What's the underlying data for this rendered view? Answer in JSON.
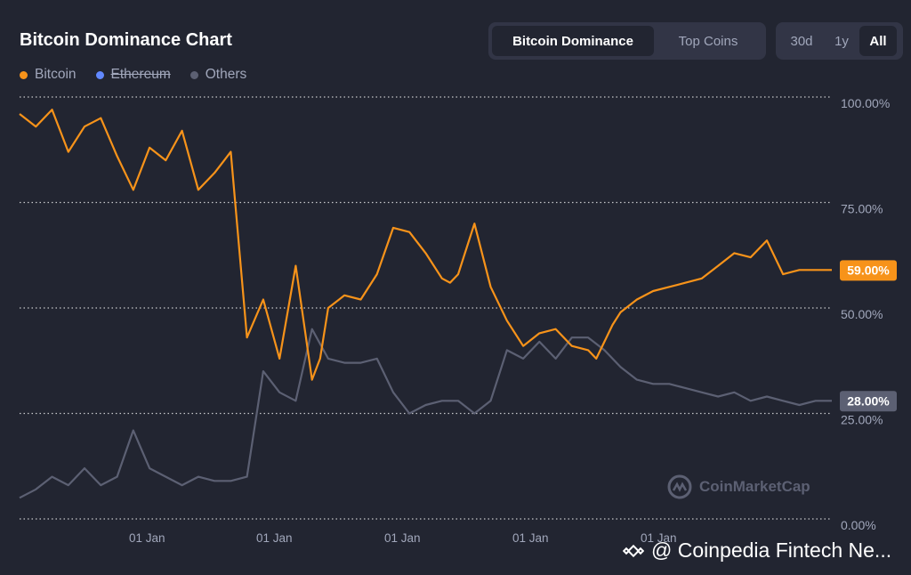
{
  "header": {
    "title": "Bitcoin Dominance Chart"
  },
  "view_toggle": {
    "options": [
      "Bitcoin Dominance",
      "Top Coins"
    ],
    "selected": "Bitcoin Dominance"
  },
  "range_toggle": {
    "options": [
      "30d",
      "1y",
      "All"
    ],
    "selected": "All"
  },
  "watermark": {
    "text": "CoinMarketCap"
  },
  "overlay_credit": {
    "text": "@ Coinpedia Fintech Ne..."
  },
  "colors": {
    "background": "#222531",
    "bitcoin": "#f7931a",
    "ethereum": "#6188ff",
    "others": "#5c6073",
    "grid": "#ffffff"
  },
  "chart_data": {
    "type": "line",
    "title": "Bitcoin Dominance Chart",
    "ylim": [
      0,
      100
    ],
    "y_ticks": [
      "100.00%",
      "75.00%",
      "50.00%",
      "25.00%",
      "0.00%"
    ],
    "x_ticks": [
      "01 Jan",
      "01 Jan",
      "01 Jan",
      "01 Jan",
      "01 Jan"
    ],
    "grid": true,
    "legend_position": "top-left",
    "current_labels": {
      "bitcoin": "59.00%",
      "others": "28.00%"
    },
    "series": [
      {
        "name": "Bitcoin",
        "visible": true,
        "x": [
          0,
          2,
          4,
          6,
          8,
          10,
          12,
          14,
          16,
          18,
          20,
          22,
          24,
          26,
          28,
          30,
          32,
          34,
          36,
          37,
          38,
          40,
          42,
          44,
          46,
          48,
          50,
          52,
          53,
          54,
          56,
          58,
          60,
          62,
          64,
          66,
          68,
          70,
          71,
          72,
          73,
          74,
          76,
          78,
          80,
          82,
          84,
          86,
          88,
          90,
          92,
          94,
          96,
          98,
          100
        ],
        "values": [
          96,
          93,
          97,
          87,
          93,
          95,
          86,
          78,
          88,
          85,
          92,
          78,
          82,
          87,
          43,
          52,
          38,
          60,
          33,
          38,
          50,
          53,
          52,
          58,
          69,
          68,
          63,
          57,
          56,
          58,
          70,
          55,
          47,
          41,
          44,
          45,
          41,
          40,
          38,
          42,
          46,
          49,
          52,
          54,
          55,
          56,
          57,
          60,
          63,
          62,
          66,
          58,
          59,
          59,
          59
        ]
      },
      {
        "name": "Ethereum",
        "visible": false,
        "x": [],
        "values": []
      },
      {
        "name": "Others",
        "visible": true,
        "x": [
          0,
          2,
          4,
          6,
          8,
          10,
          12,
          14,
          16,
          18,
          20,
          22,
          24,
          26,
          28,
          30,
          32,
          34,
          36,
          38,
          40,
          42,
          44,
          46,
          48,
          50,
          52,
          54,
          56,
          58,
          60,
          62,
          64,
          66,
          68,
          70,
          72,
          74,
          76,
          78,
          80,
          82,
          84,
          86,
          88,
          90,
          92,
          94,
          96,
          98,
          100
        ],
        "values": [
          5,
          7,
          10,
          8,
          12,
          8,
          10,
          21,
          12,
          10,
          8,
          10,
          9,
          9,
          10,
          35,
          30,
          28,
          45,
          38,
          37,
          37,
          38,
          30,
          25,
          27,
          28,
          28,
          25,
          28,
          40,
          38,
          42,
          38,
          43,
          43,
          40,
          36,
          33,
          32,
          32,
          31,
          30,
          29,
          30,
          28,
          29,
          28,
          27,
          28,
          28
        ]
      }
    ]
  }
}
